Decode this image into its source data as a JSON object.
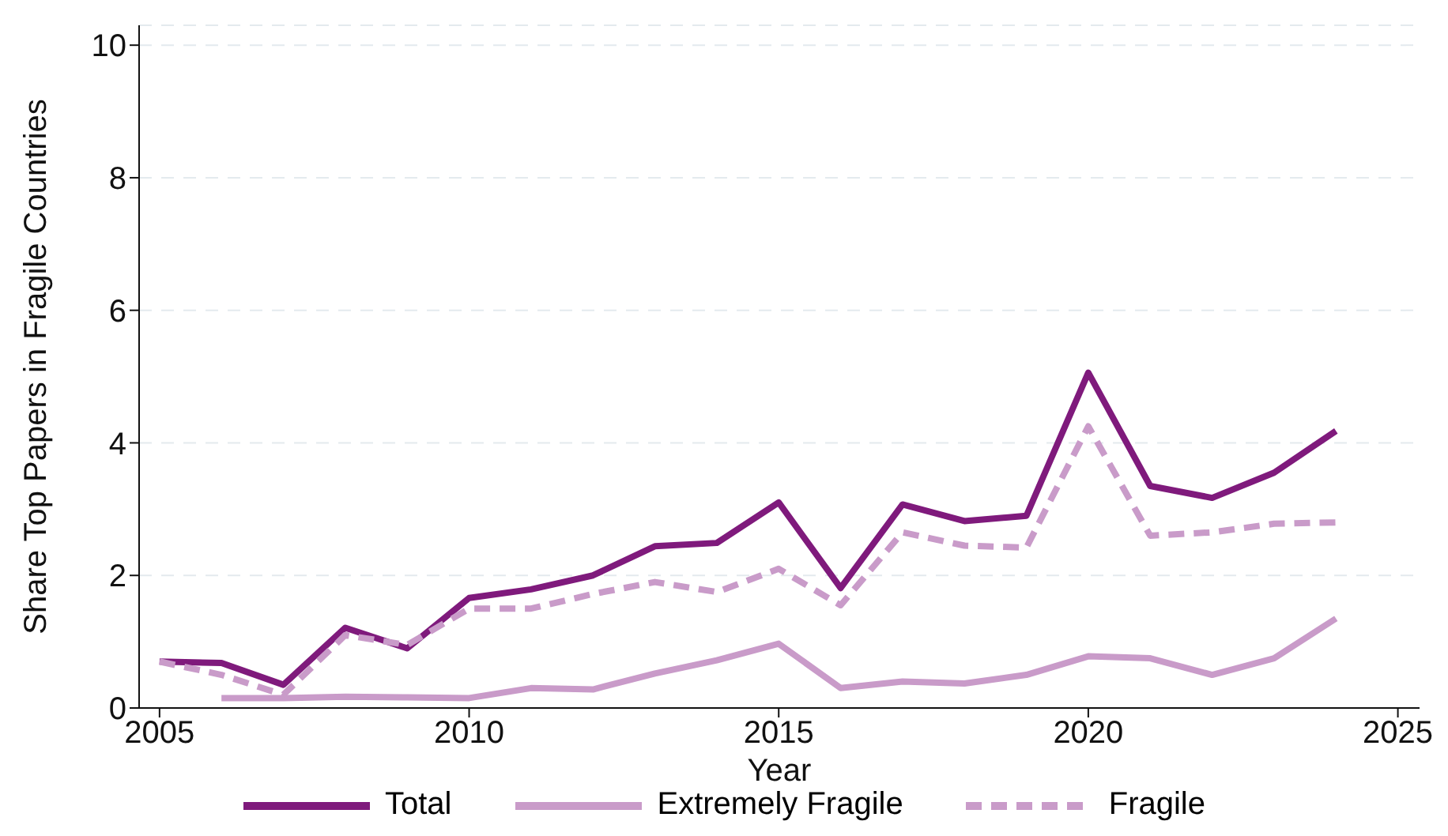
{
  "chart_data": {
    "type": "line",
    "xlabel": "Year",
    "ylabel": "Share Top Papers in Fragile Countries",
    "x": [
      2005,
      2006,
      2007,
      2008,
      2009,
      2010,
      2011,
      2012,
      2013,
      2014,
      2015,
      2016,
      2017,
      2018,
      2019,
      2020,
      2021,
      2022,
      2023,
      2024
    ],
    "series": [
      {
        "name": "Total",
        "color": "#7f1a7c",
        "line_style": "solid",
        "values": [
          0.7,
          0.68,
          0.35,
          1.21,
          0.9,
          1.66,
          1.79,
          2.0,
          2.44,
          2.49,
          3.1,
          1.81,
          3.07,
          2.82,
          2.9,
          5.06,
          3.35,
          3.17,
          3.55,
          4.18
        ]
      },
      {
        "name": "Extremely Fragile",
        "color": "#c99bc9",
        "line_style": "solid",
        "values": [
          null,
          0.15,
          0.15,
          0.17,
          0.16,
          0.15,
          0.3,
          0.28,
          0.52,
          0.72,
          0.97,
          0.3,
          0.4,
          0.37,
          0.5,
          0.78,
          0.75,
          0.5,
          0.75,
          1.35
        ]
      },
      {
        "name": "Fragile",
        "color": "#c99bc9",
        "line_style": "dashed",
        "values": [
          0.7,
          0.5,
          0.2,
          1.1,
          0.95,
          1.5,
          1.5,
          1.72,
          1.9,
          1.75,
          2.1,
          1.55,
          2.65,
          2.45,
          2.42,
          4.25,
          2.6,
          2.65,
          2.78,
          2.8
        ]
      }
    ],
    "xlim": [
      2004.67,
      2025.35
    ],
    "xticks": [
      2005,
      2010,
      2015,
      2020,
      2025
    ],
    "ylim": [
      0,
      10.3
    ],
    "yticks": [
      0,
      2,
      4,
      6,
      8,
      10
    ],
    "grid": "y",
    "legend": "bottom",
    "marker": "none"
  }
}
